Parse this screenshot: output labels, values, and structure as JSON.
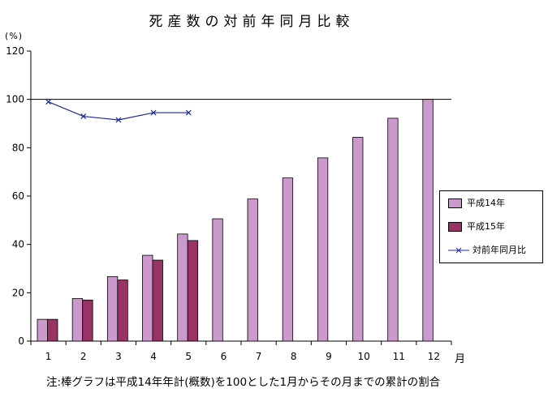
{
  "chart_data": {
    "type": "bar",
    "title": "死産数の対前年同月比較",
    "ylabel": "(%)",
    "xlabel": "月",
    "ylim": [
      0,
      120
    ],
    "yticks": [
      0,
      20,
      40,
      60,
      80,
      100,
      120
    ],
    "categories": [
      "1",
      "2",
      "3",
      "4",
      "5",
      "6",
      "7",
      "8",
      "9",
      "10",
      "11",
      "12"
    ],
    "reference_line": 100,
    "grid": false,
    "legend_position": "right",
    "series": [
      {
        "name": "平成14年",
        "kind": "bar",
        "color": "#cc99cc",
        "values": [
          9,
          17.6,
          26.7,
          35.5,
          44.3,
          50.6,
          58.8,
          67.5,
          75.8,
          84.3,
          92.2,
          100
        ]
      },
      {
        "name": "平成15年",
        "kind": "bar",
        "color": "#993366",
        "values": [
          9,
          17,
          25.3,
          33.5,
          41.6,
          null,
          null,
          null,
          null,
          null,
          null,
          null
        ]
      },
      {
        "name": "対前年同月比",
        "kind": "line",
        "color": "#1a2a9a",
        "marker": "x",
        "values": [
          99,
          93,
          91.5,
          94.5,
          94.5,
          null,
          null,
          null,
          null,
          null,
          null,
          null
        ]
      }
    ],
    "note": "注:棒グラフは平成14年年計(概数)を100とした1月からその月までの累計の割合"
  }
}
